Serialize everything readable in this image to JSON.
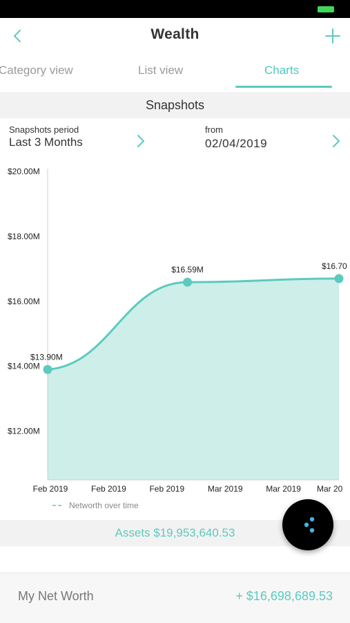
{
  "colors": {
    "accent": "#5ccac0",
    "area_fill": "#cdeee9",
    "muted": "#9a9a9a",
    "battery": "#41d65a"
  },
  "header": {
    "title": "Wealth",
    "back_icon": "chevron-left-icon",
    "add_icon": "plus-icon"
  },
  "tabs": [
    {
      "label": "Category view",
      "active": false
    },
    {
      "label": "List view",
      "active": false
    },
    {
      "label": "Charts",
      "active": true
    }
  ],
  "section": {
    "title": "Snapshots"
  },
  "filters": {
    "period_label": "Snapshots period",
    "period_value": "Last 3 Months",
    "from_label": "from",
    "from_value": "02/04/2019"
  },
  "chart_data": {
    "type": "area",
    "title": "",
    "xlabel": "",
    "ylabel": "",
    "x_tick_labels": [
      "Feb 2019",
      "Feb 2019",
      "Feb 2019",
      "Mar 2019",
      "Mar 2019",
      "Mar 20"
    ],
    "y_tick_labels": [
      "$20.00M",
      "$18.00M",
      "$16.00M",
      "$14.00M",
      "$12.00M"
    ],
    "y_ticks": [
      20,
      18,
      16,
      14,
      12
    ],
    "ylim": [
      10.5,
      20.0
    ],
    "xlim": [
      0,
      5
    ],
    "grid": false,
    "legend_position": "bottom-left",
    "series": [
      {
        "name": "Networth over time",
        "points": [
          {
            "x": 0,
            "y": 13.9,
            "label": "$13.90M"
          },
          {
            "x": 2.4,
            "y": 16.59,
            "label": "$16.59M"
          },
          {
            "x": 5,
            "y": 16.7,
            "label": "$16.70"
          }
        ]
      }
    ]
  },
  "assets": {
    "text": "Assets $19,953,640.53"
  },
  "fab": {
    "icon": "dots-menu-icon"
  },
  "net_worth": {
    "label": "My Net Worth",
    "value": "+ $16,698,689.53"
  }
}
